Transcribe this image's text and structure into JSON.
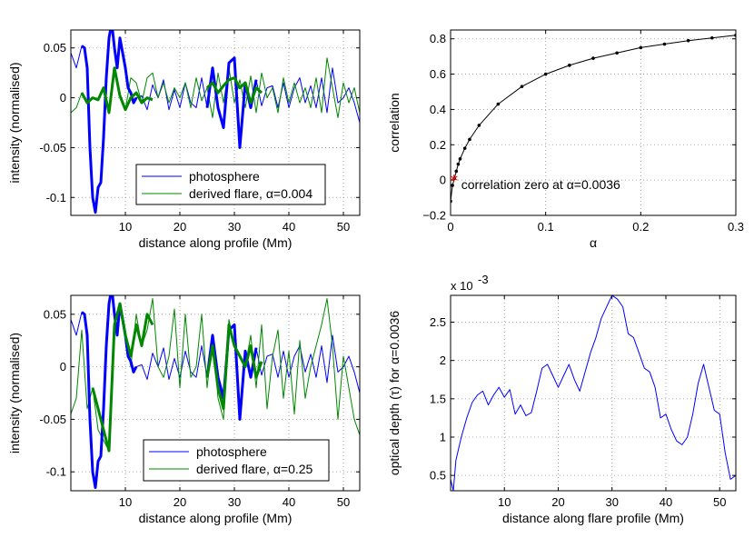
{
  "colors": {
    "blue": "#0000ff",
    "green": "#008800",
    "black": "#000000",
    "red": "#ff0000"
  },
  "chart_data": [
    {
      "id": "top-left",
      "type": "line",
      "xlabel": "distance along profile (Mm)",
      "ylabel": "intensity (normalised)",
      "xlim": [
        0,
        53
      ],
      "ylim": [
        -0.118,
        0.068
      ],
      "xticks": [
        10,
        20,
        30,
        40,
        50
      ],
      "xtick_labels": [
        "10",
        "20",
        "30",
        "40",
        "50"
      ],
      "yticks": [
        0.05,
        0,
        -0.05,
        -0.1
      ],
      "ytick_labels": [
        "0.05",
        "0",
        "-0.05",
        "-0.1"
      ],
      "grid": true,
      "legend_position": "bottom-right",
      "legend": [
        "photosphere",
        "derived flare, α=0.004"
      ],
      "series": [
        {
          "name": "photosphere",
          "color": "blue",
          "width": 1,
          "x": [
            0,
            1,
            2,
            2.5,
            3,
            3.5,
            4,
            4.5,
            5,
            5.5,
            6,
            6.5,
            7,
            7.5,
            8,
            8.5,
            9,
            9.5,
            10,
            10.5,
            11,
            11.5,
            12,
            13,
            14,
            15,
            16,
            17,
            18,
            19,
            20,
            21,
            22,
            23,
            24,
            25,
            26,
            27,
            28,
            29,
            30,
            31,
            32,
            33,
            34,
            35,
            36,
            37,
            38,
            39,
            40,
            41,
            42,
            43,
            44,
            45,
            46,
            47,
            48,
            49,
            50,
            51,
            52,
            53
          ],
          "y": [
            0.045,
            0.03,
            0.052,
            0.05,
            0.03,
            -0.05,
            -0.1,
            -0.115,
            -0.09,
            -0.085,
            -0.04,
            0.02,
            0.06,
            0.075,
            0.05,
            0.03,
            0.06,
            0.045,
            0.03,
            0.01,
            0.005,
            -0.005,
            0.0,
            0.002,
            -0.012,
            0.013,
            0.0,
            0.018,
            -0.012,
            0.008,
            -0.01,
            0.015,
            -0.005,
            -0.01,
            0.02,
            -0.01,
            0.03,
            -0.01,
            -0.03,
            0.035,
            0.04,
            -0.05,
            0.015,
            -0.01,
            0.018,
            -0.008,
            0.01,
            0.012,
            -0.01,
            0.015,
            -0.01,
            0.01,
            0.02,
            -0.005,
            0.012,
            -0.01,
            0.02,
            -0.015,
            0.03,
            -0.005,
            0.0,
            0.01,
            -0.005,
            -0.025
          ]
        },
        {
          "name": "derived flare, α=0.004",
          "color": "green",
          "width": 1,
          "x": [
            0,
            1,
            2,
            3,
            4,
            5,
            6,
            7,
            8,
            9,
            10,
            11,
            12,
            13,
            14,
            15,
            16,
            17,
            18,
            19,
            20,
            21,
            22,
            23,
            24,
            25,
            26,
            27,
            28,
            29,
            30,
            31,
            32,
            33,
            34,
            35,
            36,
            37,
            38,
            39,
            40,
            41,
            42,
            43,
            44,
            45,
            46,
            47,
            48,
            49,
            50,
            51,
            52,
            53
          ],
          "y": [
            -0.015,
            -0.01,
            0.005,
            -0.005,
            0.0,
            -0.002,
            0.01,
            -0.015,
            0.03,
            0.002,
            -0.012,
            0.02,
            0.015,
            -0.005,
            0.02,
            0.025,
            0.0,
            0.015,
            -0.005,
            0.01,
            0.0,
            0.015,
            -0.01,
            0.02,
            -0.003,
            0.01,
            -0.02,
            0.025,
            -0.005,
            0.03,
            -0.005,
            0.018,
            -0.01,
            0.022,
            -0.015,
            0.025,
            0.0,
            0.01,
            -0.015,
            0.02,
            -0.005,
            0.015,
            -0.005,
            0.01,
            -0.01,
            0.02,
            -0.015,
            0.04,
            0.01,
            -0.02,
            0.015,
            -0.005,
            0.01,
            -0.015
          ]
        },
        {
          "name": "",
          "color": "blue",
          "width": 3,
          "x": [
            2,
            2.5,
            3,
            3.5,
            4,
            4.5,
            5,
            5.5,
            6,
            6.5,
            7,
            7.5,
            8,
            8.5,
            9,
            9.5,
            10,
            10.5,
            11,
            11.5,
            12
          ],
          "y": [
            0.052,
            0.05,
            0.03,
            -0.05,
            -0.1,
            -0.115,
            -0.09,
            -0.085,
            -0.04,
            0.02,
            0.06,
            0.075,
            0.05,
            0.03,
            0.06,
            0.045,
            0.03,
            0.01,
            0.005,
            -0.005,
            0.0
          ]
        },
        {
          "name": "",
          "color": "green",
          "width": 3,
          "x": [
            2,
            3,
            4,
            5,
            6,
            7,
            8,
            9,
            10,
            11,
            12,
            13,
            14,
            15
          ],
          "y": [
            0.005,
            -0.005,
            0.0,
            -0.002,
            0.01,
            -0.015,
            0.03,
            0.002,
            -0.012,
            0.0,
            0.005,
            -0.005,
            0.0,
            -0.002
          ]
        },
        {
          "name": "",
          "color": "blue",
          "width": 3,
          "x": [
            25,
            26,
            27,
            28,
            29,
            30,
            31,
            32,
            33,
            34
          ],
          "y": [
            -0.01,
            0.03,
            -0.01,
            -0.03,
            0.035,
            0.04,
            -0.05,
            0.015,
            -0.01,
            0.018
          ]
        },
        {
          "name": "",
          "color": "green",
          "width": 3,
          "x": [
            25,
            26,
            27,
            28,
            29,
            30,
            31,
            32,
            33,
            34,
            35
          ],
          "y": [
            0.01,
            0.015,
            0.005,
            0.012,
            0.018,
            0.02,
            0.01,
            0.015,
            -0.005,
            0.01,
            0.005
          ]
        }
      ]
    },
    {
      "id": "top-right",
      "type": "line",
      "xlabel": "α",
      "ylabel": "correlation",
      "xlim": [
        0,
        0.3
      ],
      "ylim": [
        -0.2,
        0.85
      ],
      "xticks": [
        0,
        0.1,
        0.2,
        0.3
      ],
      "xtick_labels": [
        "0",
        "0.1",
        "0.2",
        "0.3"
      ],
      "yticks": [
        -0.2,
        0,
        0.2,
        0.4,
        0.6,
        0.8
      ],
      "ytick_labels": [
        "−0.2",
        "0",
        "0.2",
        "0.4",
        "0.6",
        "0.8"
      ],
      "grid": true,
      "annotation": "correlation zero at α=0.0036",
      "zero_point": {
        "x": 0.0036,
        "y": 0
      },
      "series": [
        {
          "name": "",
          "color": "black",
          "width": 1,
          "x": [
            0.0,
            0.002,
            0.004,
            0.006,
            0.008,
            0.01,
            0.015,
            0.02,
            0.03,
            0.05,
            0.075,
            0.1,
            0.125,
            0.15,
            0.175,
            0.2,
            0.225,
            0.25,
            0.275,
            0.3
          ],
          "y": [
            -0.12,
            -0.03,
            0.01,
            0.05,
            0.09,
            0.12,
            0.18,
            0.23,
            0.31,
            0.43,
            0.53,
            0.6,
            0.65,
            0.69,
            0.72,
            0.75,
            0.77,
            0.79,
            0.805,
            0.82
          ]
        }
      ]
    },
    {
      "id": "bottom-left",
      "type": "line",
      "xlabel": "distance along profile (Mm)",
      "ylabel": "intensity (normalised)",
      "xlim": [
        0,
        53
      ],
      "ylim": [
        -0.118,
        0.068
      ],
      "xticks": [
        10,
        20,
        30,
        40,
        50
      ],
      "xtick_labels": [
        "10",
        "20",
        "30",
        "40",
        "50"
      ],
      "yticks": [
        0.05,
        0,
        -0.05,
        -0.1
      ],
      "ytick_labels": [
        "0.05",
        "0",
        "-0.05",
        "-0.1"
      ],
      "grid": true,
      "legend_position": "bottom-right",
      "legend": [
        "photosphere",
        "derived flare, α=0.25"
      ],
      "series": [
        {
          "name": "photosphere",
          "color": "blue",
          "width": 1,
          "x": [
            0,
            1,
            2,
            2.5,
            3,
            3.5,
            4,
            4.5,
            5,
            5.5,
            6,
            6.5,
            7,
            7.5,
            8,
            8.5,
            9,
            9.5,
            10,
            10.5,
            11,
            11.5,
            12,
            13,
            14,
            15,
            16,
            17,
            18,
            19,
            20,
            21,
            22,
            23,
            24,
            25,
            26,
            27,
            28,
            29,
            30,
            31,
            32,
            33,
            34,
            35,
            36,
            37,
            38,
            39,
            40,
            41,
            42,
            43,
            44,
            45,
            46,
            47,
            48,
            49,
            50,
            51,
            52,
            53
          ],
          "y": [
            0.045,
            0.03,
            0.052,
            0.05,
            0.03,
            -0.05,
            -0.1,
            -0.115,
            -0.09,
            -0.085,
            -0.04,
            0.02,
            0.06,
            0.075,
            0.05,
            0.03,
            0.06,
            0.045,
            0.03,
            0.01,
            0.005,
            -0.005,
            0.0,
            0.002,
            -0.012,
            0.013,
            0.0,
            0.018,
            -0.012,
            0.008,
            -0.01,
            0.015,
            -0.005,
            -0.01,
            0.02,
            -0.01,
            0.03,
            -0.01,
            -0.03,
            0.035,
            0.04,
            -0.05,
            0.015,
            -0.01,
            0.018,
            -0.008,
            0.01,
            0.012,
            -0.01,
            0.015,
            -0.01,
            0.01,
            0.02,
            -0.005,
            0.012,
            -0.01,
            0.02,
            -0.015,
            0.03,
            -0.005,
            0.0,
            0.01,
            -0.005,
            -0.025
          ]
        },
        {
          "name": "derived flare, α=0.25",
          "color": "green",
          "width": 1,
          "x": [
            0,
            1,
            2,
            3,
            4,
            5,
            6,
            7,
            8,
            9,
            10,
            11,
            12,
            13,
            14,
            15,
            16,
            17,
            18,
            19,
            20,
            21,
            22,
            23,
            24,
            25,
            26,
            27,
            28,
            29,
            30,
            31,
            32,
            33,
            34,
            35,
            36,
            37,
            38,
            39,
            40,
            41,
            42,
            43,
            44,
            45,
            46,
            47,
            48,
            49,
            50,
            51,
            52,
            53
          ],
          "y": [
            -0.045,
            -0.03,
            0.035,
            -0.04,
            -0.02,
            -0.06,
            -0.07,
            -0.08,
            0.04,
            0.06,
            0.03,
            0.0,
            0.05,
            0.02,
            0.035,
            0.065,
            0.0,
            -0.01,
            0.01,
            0.055,
            -0.02,
            0.05,
            -0.01,
            0.0,
            0.05,
            -0.02,
            0.03,
            -0.03,
            -0.05,
            0.045,
            0.02,
            0.01,
            0.0,
            0.03,
            -0.02,
            0.04,
            -0.04,
            0.01,
            0.035,
            -0.03,
            0.015,
            -0.045,
            0.025,
            -0.03,
            0.0,
            0.02,
            0.04,
            0.065,
            0.02,
            -0.05,
            0.01,
            -0.02,
            -0.05,
            -0.065
          ]
        },
        {
          "name": "",
          "color": "blue",
          "width": 3,
          "x": [
            2,
            2.5,
            3,
            3.5,
            4,
            4.5,
            5,
            5.5,
            6,
            6.5,
            7,
            7.5,
            8,
            8.5,
            9,
            9.5,
            10,
            10.5,
            11,
            11.5,
            12
          ],
          "y": [
            0.052,
            0.05,
            0.03,
            -0.05,
            -0.1,
            -0.115,
            -0.09,
            -0.085,
            -0.04,
            0.02,
            0.06,
            0.075,
            0.05,
            0.03,
            0.06,
            0.045,
            0.03,
            0.01,
            0.005,
            -0.005,
            0.0
          ]
        },
        {
          "name": "",
          "color": "green",
          "width": 3,
          "x": [
            4,
            5,
            6,
            7,
            8,
            9,
            10,
            11,
            12,
            13,
            14,
            15
          ],
          "y": [
            -0.02,
            -0.04,
            -0.06,
            -0.08,
            0.04,
            0.06,
            0.03,
            0.01,
            0.04,
            0.02,
            0.05,
            0.04
          ]
        },
        {
          "name": "",
          "color": "blue",
          "width": 3,
          "x": [
            25,
            26,
            27,
            28,
            29,
            30,
            31,
            32,
            33,
            34
          ],
          "y": [
            -0.01,
            0.03,
            -0.01,
            -0.03,
            0.035,
            0.04,
            -0.05,
            0.015,
            -0.01,
            0.018
          ]
        },
        {
          "name": "",
          "color": "green",
          "width": 3,
          "x": [
            25,
            26,
            27,
            28,
            29,
            30,
            31,
            32,
            33,
            34,
            35
          ],
          "y": [
            -0.01,
            0.02,
            -0.02,
            -0.04,
            0.04,
            0.02,
            0.01,
            0.0,
            0.02,
            -0.01,
            0.005
          ]
        }
      ]
    },
    {
      "id": "bottom-right",
      "type": "line",
      "xlabel": "distance along flare profile (Mm)",
      "ylabel": "optical depth (τ) for α=0.0036",
      "multiplier": "x 10",
      "multiplier_exp": "-3",
      "xlim": [
        0,
        53
      ],
      "ylim": [
        0.3,
        2.85
      ],
      "xticks": [
        10,
        20,
        30,
        40,
        50
      ],
      "xtick_labels": [
        "10",
        "20",
        "30",
        "40",
        "50"
      ],
      "yticks": [
        0.5,
        1,
        1.5,
        2,
        2.5
      ],
      "ytick_labels": [
        "0.5",
        "1",
        "1.5",
        "2",
        "2.5"
      ],
      "grid": true,
      "series": [
        {
          "name": "",
          "color": "blue",
          "width": 1,
          "x": [
            0,
            0.5,
            1,
            2,
            3,
            4,
            5,
            6,
            7,
            8,
            9,
            10,
            11,
            12,
            13,
            14,
            15,
            16,
            17,
            18,
            19,
            20,
            21,
            22,
            23,
            24,
            25,
            26,
            27,
            28,
            29,
            30,
            31,
            32,
            33,
            34,
            35,
            36,
            37,
            38,
            39,
            40,
            41,
            42,
            43,
            44,
            45,
            46,
            47,
            48,
            49,
            50,
            51,
            52,
            53
          ],
          "y": [
            0.45,
            0.3,
            0.7,
            1.0,
            1.25,
            1.45,
            1.55,
            1.6,
            1.42,
            1.55,
            1.65,
            1.52,
            1.62,
            1.3,
            1.42,
            1.28,
            1.32,
            1.6,
            1.9,
            1.95,
            1.8,
            1.65,
            1.8,
            1.95,
            1.75,
            1.6,
            1.85,
            2.1,
            2.3,
            2.55,
            2.7,
            2.85,
            2.8,
            2.7,
            2.35,
            2.3,
            2.1,
            1.9,
            1.85,
            1.65,
            1.25,
            1.3,
            1.1,
            0.95,
            0.9,
            1.0,
            1.3,
            1.7,
            1.95,
            1.65,
            1.35,
            1.3,
            0.8,
            0.45,
            0.5
          ]
        }
      ]
    }
  ]
}
